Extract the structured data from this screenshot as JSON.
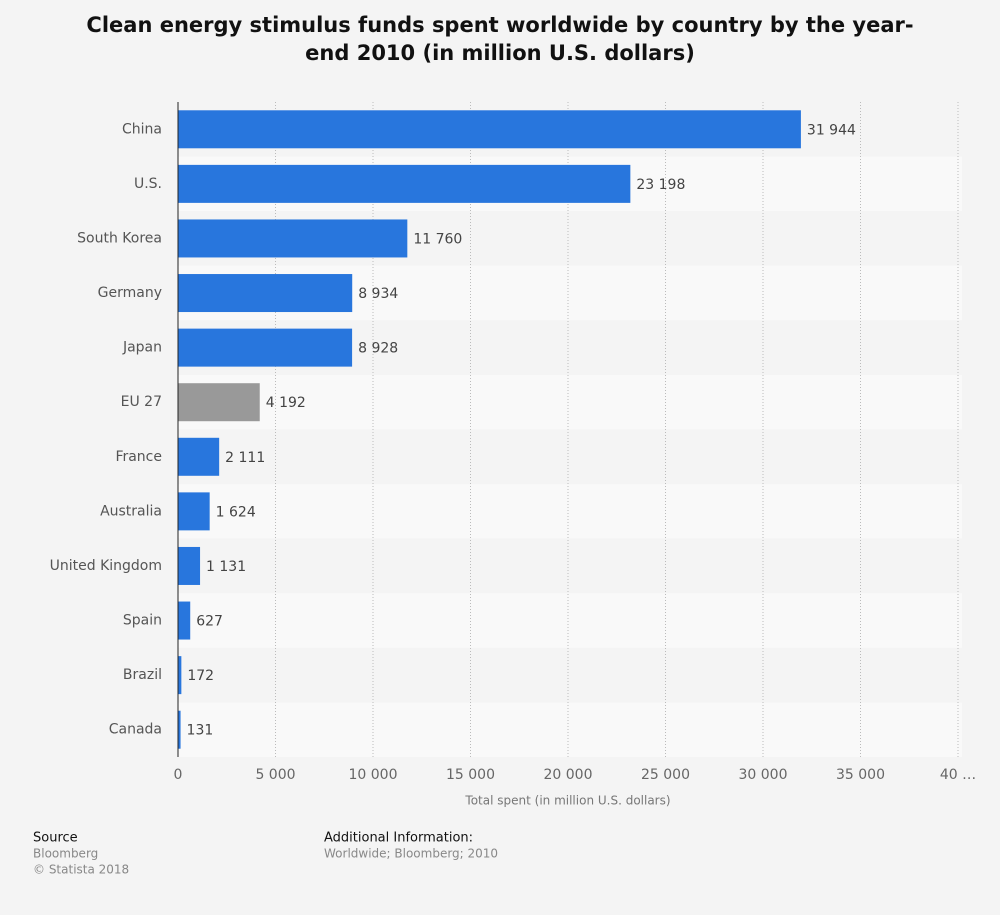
{
  "chart_data": {
    "type": "hbar",
    "title": "Clean energy stimulus funds spent worldwide by country by the year-end 2010 (in million U.S. dollars)",
    "x_label": "Total spent (in million U.S. dollars)",
    "categories": [
      "China",
      "U.S.",
      "South Korea",
      "Germany",
      "Japan",
      "EU 27",
      "France",
      "Australia",
      "United Kingdom",
      "Spain",
      "Brazil",
      "Canada"
    ],
    "values": [
      31944,
      23198,
      11760,
      8934,
      8928,
      4192,
      2111,
      1624,
      1131,
      627,
      172,
      131
    ],
    "value_labels": [
      "31 944",
      "23 198",
      "11 760",
      "8 934",
      "8 928",
      "4 192",
      "2 111",
      "1 624",
      "1 131",
      "627",
      "172",
      "131"
    ],
    "colors": [
      "#2876dd",
      "#2876dd",
      "#2876dd",
      "#2876dd",
      "#2876dd",
      "#999999",
      "#2876dd",
      "#2876dd",
      "#2876dd",
      "#2876dd",
      "#2876dd",
      "#2876dd"
    ],
    "xlim": [
      0,
      40000
    ],
    "xticks": [
      0,
      {
        "value": 5000,
        "label": "5 000"
      },
      {
        "value": 10000,
        "label": "10 000"
      },
      {
        "value": 15000,
        "label": "15 000"
      },
      {
        "value": 20000,
        "label": "20 000"
      },
      {
        "value": 25000,
        "label": "25 000"
      },
      {
        "value": 30000,
        "label": "30 000"
      },
      {
        "value": 35000,
        "label": "35 000"
      },
      {
        "value": 40000,
        "label": "40 …"
      }
    ],
    "grid": true
  },
  "footer": {
    "source_title": "Source",
    "source": "Bloomberg",
    "copyright": "© Statista 2018",
    "info_title": "Additional Information:",
    "info": "Worldwide; Bloomberg; 2010"
  }
}
